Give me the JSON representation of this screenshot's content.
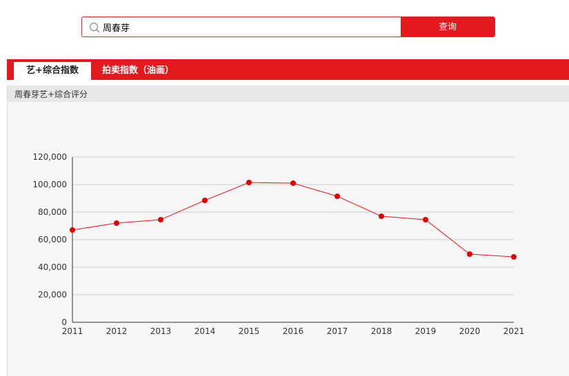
{
  "search": {
    "value": "周春芽",
    "button_label": "查询"
  },
  "tabs": [
    {
      "label": "艺+综合指数",
      "active": true
    },
    {
      "label": "拍卖指数（油画）",
      "active": false
    }
  ],
  "panel": {
    "title": "周春芽艺+综合评分"
  },
  "colors": {
    "accent": "#e3191e",
    "line": "#e3191e",
    "point": "#e00000"
  },
  "chart_data": {
    "type": "line",
    "categories": [
      "2011",
      "2012",
      "2013",
      "2014",
      "2015",
      "2016",
      "2017",
      "2018",
      "2019",
      "2020",
      "2021"
    ],
    "series": [
      {
        "values": [
          67000,
          72000,
          74500,
          88500,
          101500,
          101000,
          91500,
          77000,
          74500,
          49500,
          47500
        ]
      }
    ],
    "ylim": [
      0,
      120000
    ],
    "yticks": [
      0,
      20000,
      40000,
      60000,
      80000,
      100000,
      120000
    ],
    "ytick_labels": [
      "0",
      "20,000",
      "40,000",
      "60,000",
      "80,000",
      "100,000",
      "120,000"
    ],
    "grid": true,
    "title": "",
    "xlabel": "",
    "ylabel": ""
  }
}
